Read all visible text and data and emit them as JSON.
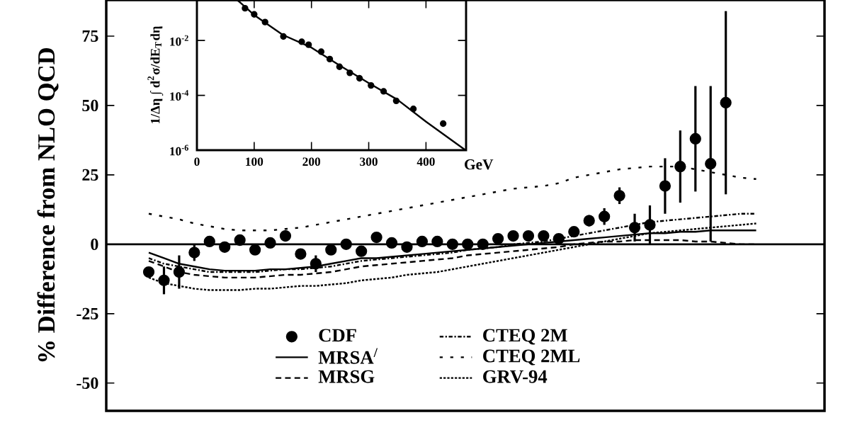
{
  "chart_data": [
    {
      "type": "scatter",
      "ylabel": "% Difference from NLO QCD",
      "categories": [
        null,
        null,
        null,
        null,
        null,
        null,
        null,
        null,
        null,
        null,
        null,
        null,
        null,
        null,
        null,
        null,
        null,
        null,
        null,
        null,
        null,
        null,
        null,
        null,
        null,
        null,
        null,
        null,
        null,
        null,
        null,
        null,
        null,
        null,
        null,
        null,
        null,
        null,
        null,
        null,
        null
      ],
      "series": [
        {
          "name": "CDF",
          "type": "scatter",
          "marker": "circle",
          "color": "#000000",
          "values": [
            -10,
            -13,
            -10,
            -3,
            1,
            -1,
            1.5,
            -2,
            0.5,
            3,
            -3.5,
            -7,
            -2,
            0,
            -2.5,
            2.5,
            0.5,
            -1,
            1,
            1,
            0,
            0,
            0,
            2,
            3,
            3,
            3,
            2,
            4.5,
            8.5,
            10,
            17.5,
            6,
            7,
            21,
            28,
            38,
            29,
            51,
            null,
            null
          ],
          "errors": [
            null,
            5,
            6,
            3,
            null,
            null,
            null,
            null,
            null,
            2,
            null,
            3,
            null,
            null,
            null,
            null,
            null,
            null,
            null,
            null,
            null,
            null,
            null,
            null,
            null,
            null,
            null,
            null,
            null,
            2,
            3,
            3,
            5,
            7,
            10,
            13,
            19,
            28,
            33,
            null,
            null
          ]
        },
        {
          "name": "MRSA$^{/}$",
          "type": "line",
          "line_style": "solid",
          "color": "#000000",
          "values": [
            -3,
            -5,
            -7,
            -8,
            -9,
            -9.5,
            -9.5,
            -9.5,
            -9,
            -9,
            -8.5,
            -8,
            -7,
            -6,
            -5,
            -5,
            -4.5,
            -4,
            -3.5,
            -3,
            -2.5,
            -2,
            -1.5,
            -1,
            -0.5,
            0,
            0.5,
            1,
            1.5,
            2,
            2.5,
            3,
            3.5,
            4,
            4,
            4.5,
            4.5,
            5,
            5,
            5,
            5
          ]
        },
        {
          "name": "MRSG",
          "type": "line",
          "line_style": "dashed",
          "color": "#000000",
          "values": [
            -6,
            -8,
            -10,
            -11,
            -11.5,
            -12,
            -12,
            -12,
            -11.5,
            -11,
            -11,
            -10.5,
            -10,
            -9,
            -8,
            -7.5,
            -7,
            -6.5,
            -6,
            -5.5,
            -5,
            -4,
            -3.5,
            -3,
            -2.5,
            -2,
            -1.5,
            -1,
            0,
            0.5,
            1,
            1,
            1.5,
            1.5,
            1.5,
            1.5,
            1,
            1,
            0.5,
            0,
            0
          ]
        },
        {
          "name": "CTEQ 2M",
          "type": "line",
          "line_style": "dashdotted",
          "color": "#000000",
          "values": [
            -5,
            -7,
            -8,
            -9,
            -10,
            -10,
            -10,
            -10,
            -9.5,
            -9,
            -9,
            -8.5,
            -8,
            -7,
            -6,
            -5.5,
            -5,
            -4.5,
            -4,
            -3.5,
            -3,
            -2,
            -1.5,
            -1,
            0,
            0.5,
            1,
            2,
            3,
            4,
            5,
            6,
            7,
            8,
            8.5,
            9,
            9.5,
            10,
            10.5,
            11,
            11
          ]
        },
        {
          "name": "CTEQ 2ML",
          "type": "line",
          "line_style": "dotted",
          "color": "#000000",
          "values": [
            11,
            10,
            9,
            7.5,
            6.5,
            5.5,
            5,
            5,
            5,
            5.5,
            6,
            7,
            8,
            9,
            10,
            11,
            12,
            13,
            14,
            15,
            16,
            17,
            18,
            19,
            20,
            20.5,
            21,
            22,
            24,
            25,
            26,
            27,
            27.5,
            28,
            28,
            28,
            27,
            26,
            25,
            24,
            23.5
          ]
        },
        {
          "name": "GRV-94",
          "type": "line",
          "line_style": "densely dotted",
          "color": "#000000",
          "values": [
            -12,
            -14,
            -15,
            -16,
            -16.5,
            -16.5,
            -16.5,
            -16,
            -16,
            -15.5,
            -15,
            -15,
            -14.5,
            -14,
            -13,
            -12.5,
            -12,
            -11,
            -10.5,
            -10,
            -9,
            -8,
            -7,
            -6,
            -5,
            -4,
            -3,
            -2,
            -1,
            0,
            1,
            2,
            3,
            4,
            4.5,
            5,
            5.5,
            6,
            6.5,
            7,
            7.5
          ]
        }
      ],
      "ylim": [
        -60,
        88
      ],
      "yticks": [
        -50,
        -25,
        0,
        25,
        50,
        75
      ],
      "ref_lines": [
        {
          "axis": "y",
          "value": 0
        }
      ],
      "legend": "bottom",
      "tick_labels": "y"
    },
    {
      "type": "scatter",
      "ylabel": "1/Δη ∫ d$^{2}$σ/dE$_{T}$dη",
      "xlabel": "GeV",
      "series": [
        {
          "type": "scatter",
          "marker": "circle",
          "color": "#000000",
          "x": [
            84,
            100,
            119,
            151,
            183,
            195,
            217,
            232,
            249,
            267,
            284,
            304,
            326,
            348,
            378,
            430
          ],
          "values": [
            0.15,
            0.09,
            0.047,
            0.014,
            0.009,
            0.007,
            0.0039,
            0.0021,
            0.0011,
            0.00066,
            0.00042,
            0.00023,
            0.00014,
            6.3e-05,
            3.2e-05,
            9.3e-06
          ]
        },
        {
          "type": "line",
          "line_style": "solid",
          "color": "#000000",
          "x": [
            70,
            75,
            100,
            150,
            200,
            250,
            300,
            350,
            400,
            469
          ],
          "values": [
            0.3,
            0.25,
            0.085,
            0.016,
            0.0055,
            0.0012,
            0.00028,
            7e-05,
            1.1e-05,
            1e-06
          ]
        }
      ],
      "xlim": [
        0,
        470
      ],
      "ylim": [
        1e-06,
        0.3
      ],
      "log": "y",
      "xticks": [
        0,
        100,
        200,
        300,
        400
      ],
      "yticks": [
        {
          "value": 1e-06,
          "label": "10$^{-6}$"
        },
        {
          "value": 0.0001,
          "label": "10$^{-4}$"
        },
        {
          "value": 0.01,
          "label": "10$^{-2}$"
        }
      ]
    }
  ]
}
